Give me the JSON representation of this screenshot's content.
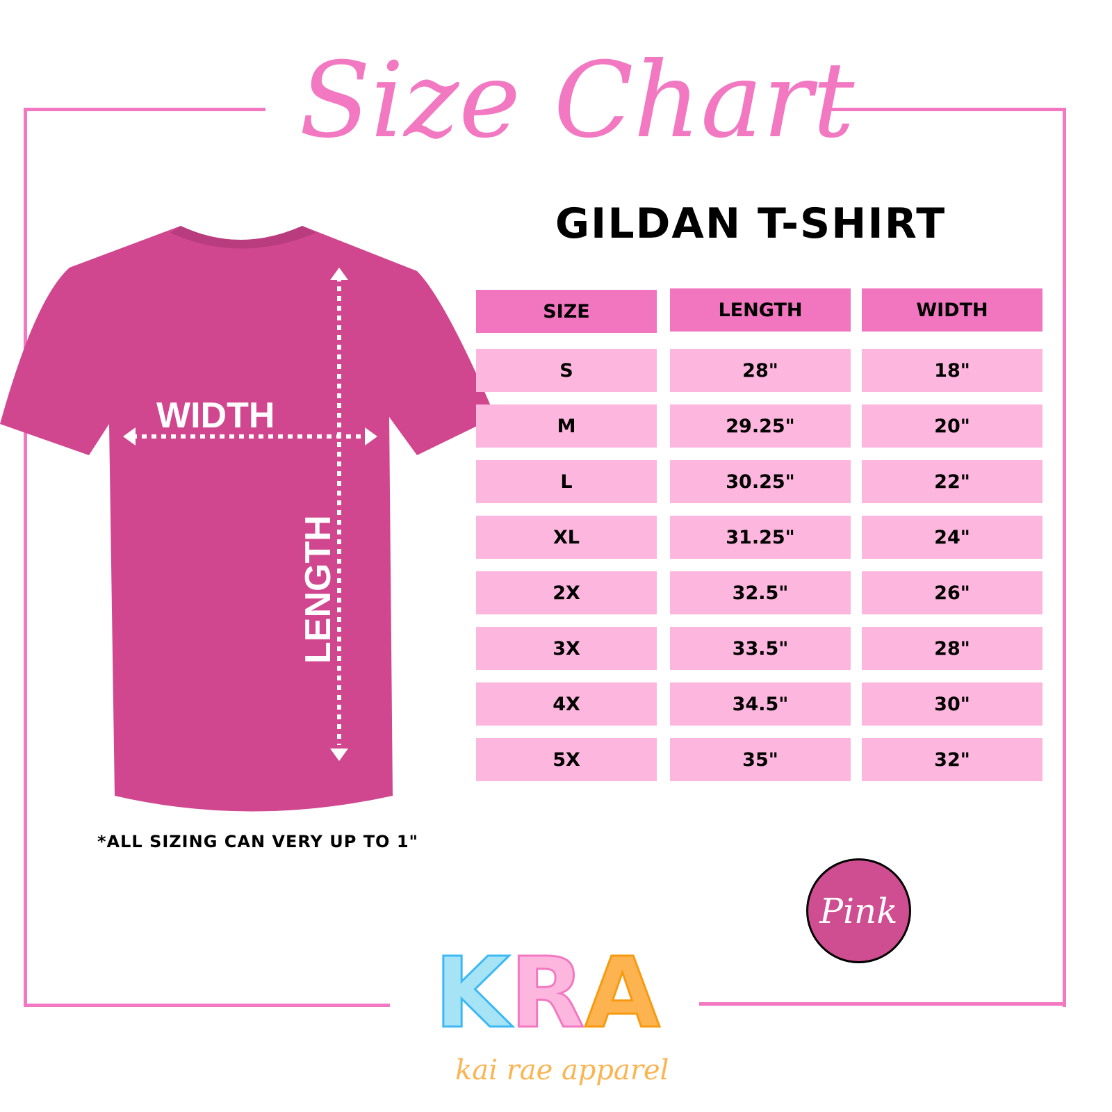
{
  "title": "Size Chart",
  "subtitle": "GILDAN T-SHIRT",
  "colors": {
    "frame": "#f278c2",
    "header": "#f275c0",
    "row": "#fdb6dd",
    "shirt": "#d0478f",
    "swatch": "#cf4e91"
  },
  "shirt": {
    "width_label": "WIDTH",
    "length_label": "LENGTH"
  },
  "table": {
    "headers": [
      "SIZE",
      "LENGTH",
      "WIDTH"
    ],
    "rows": [
      [
        "S",
        "28\"",
        "18\""
      ],
      [
        "M",
        "29.25\"",
        "20\""
      ],
      [
        "L",
        "30.25\"",
        "22\""
      ],
      [
        "XL",
        "31.25\"",
        "24\""
      ],
      [
        "2X",
        "32.5\"",
        "26\""
      ],
      [
        "3X",
        "33.5\"",
        "28\""
      ],
      [
        "4X",
        "34.5\"",
        "30\""
      ],
      [
        "5X",
        "35\"",
        "32\""
      ]
    ]
  },
  "note": "*ALL SIZING CAN VERY UP TO 1\"",
  "swatch": {
    "label": "Pink"
  },
  "logo": {
    "letters": [
      "K",
      "R",
      "A"
    ],
    "tagline": "kai rae apparel",
    "letter_colors": [
      "#a6e4f5",
      "#fdb6dd",
      "#fdb450"
    ],
    "outline_colors": [
      "#3db8f5",
      "#f278c2",
      "#f79a10"
    ]
  }
}
